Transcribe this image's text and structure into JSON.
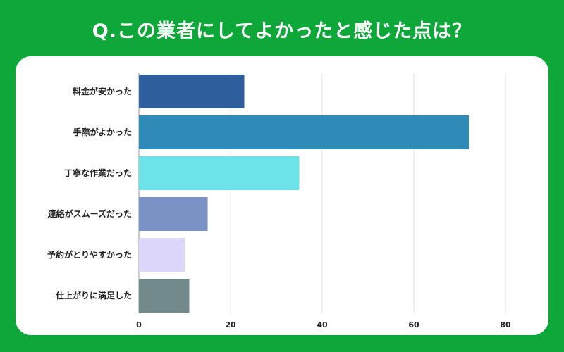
{
  "title": "Q.この業者にしてよかったと感じた点は？",
  "chart_data": {
    "type": "bar",
    "orientation": "horizontal",
    "title": "Q.この業者にしてよかったと感じた点は？",
    "categories": [
      "料金が安かった",
      "手際がよかった",
      "丁寧な作業だった",
      "連絡がスムーズだった",
      "予約がとりやすかった",
      "仕上がりに満足した"
    ],
    "values": [
      23,
      72,
      35,
      15,
      10,
      11
    ],
    "colors": [
      "#2e5f9c",
      "#2e8bb8",
      "#6ce3e8",
      "#7b92c4",
      "#dcd6fb",
      "#728a8a"
    ],
    "xlim": [
      0,
      80
    ],
    "xticks": [
      0,
      20,
      40,
      60,
      80
    ],
    "grid": true,
    "xlabel": "",
    "ylabel": ""
  }
}
